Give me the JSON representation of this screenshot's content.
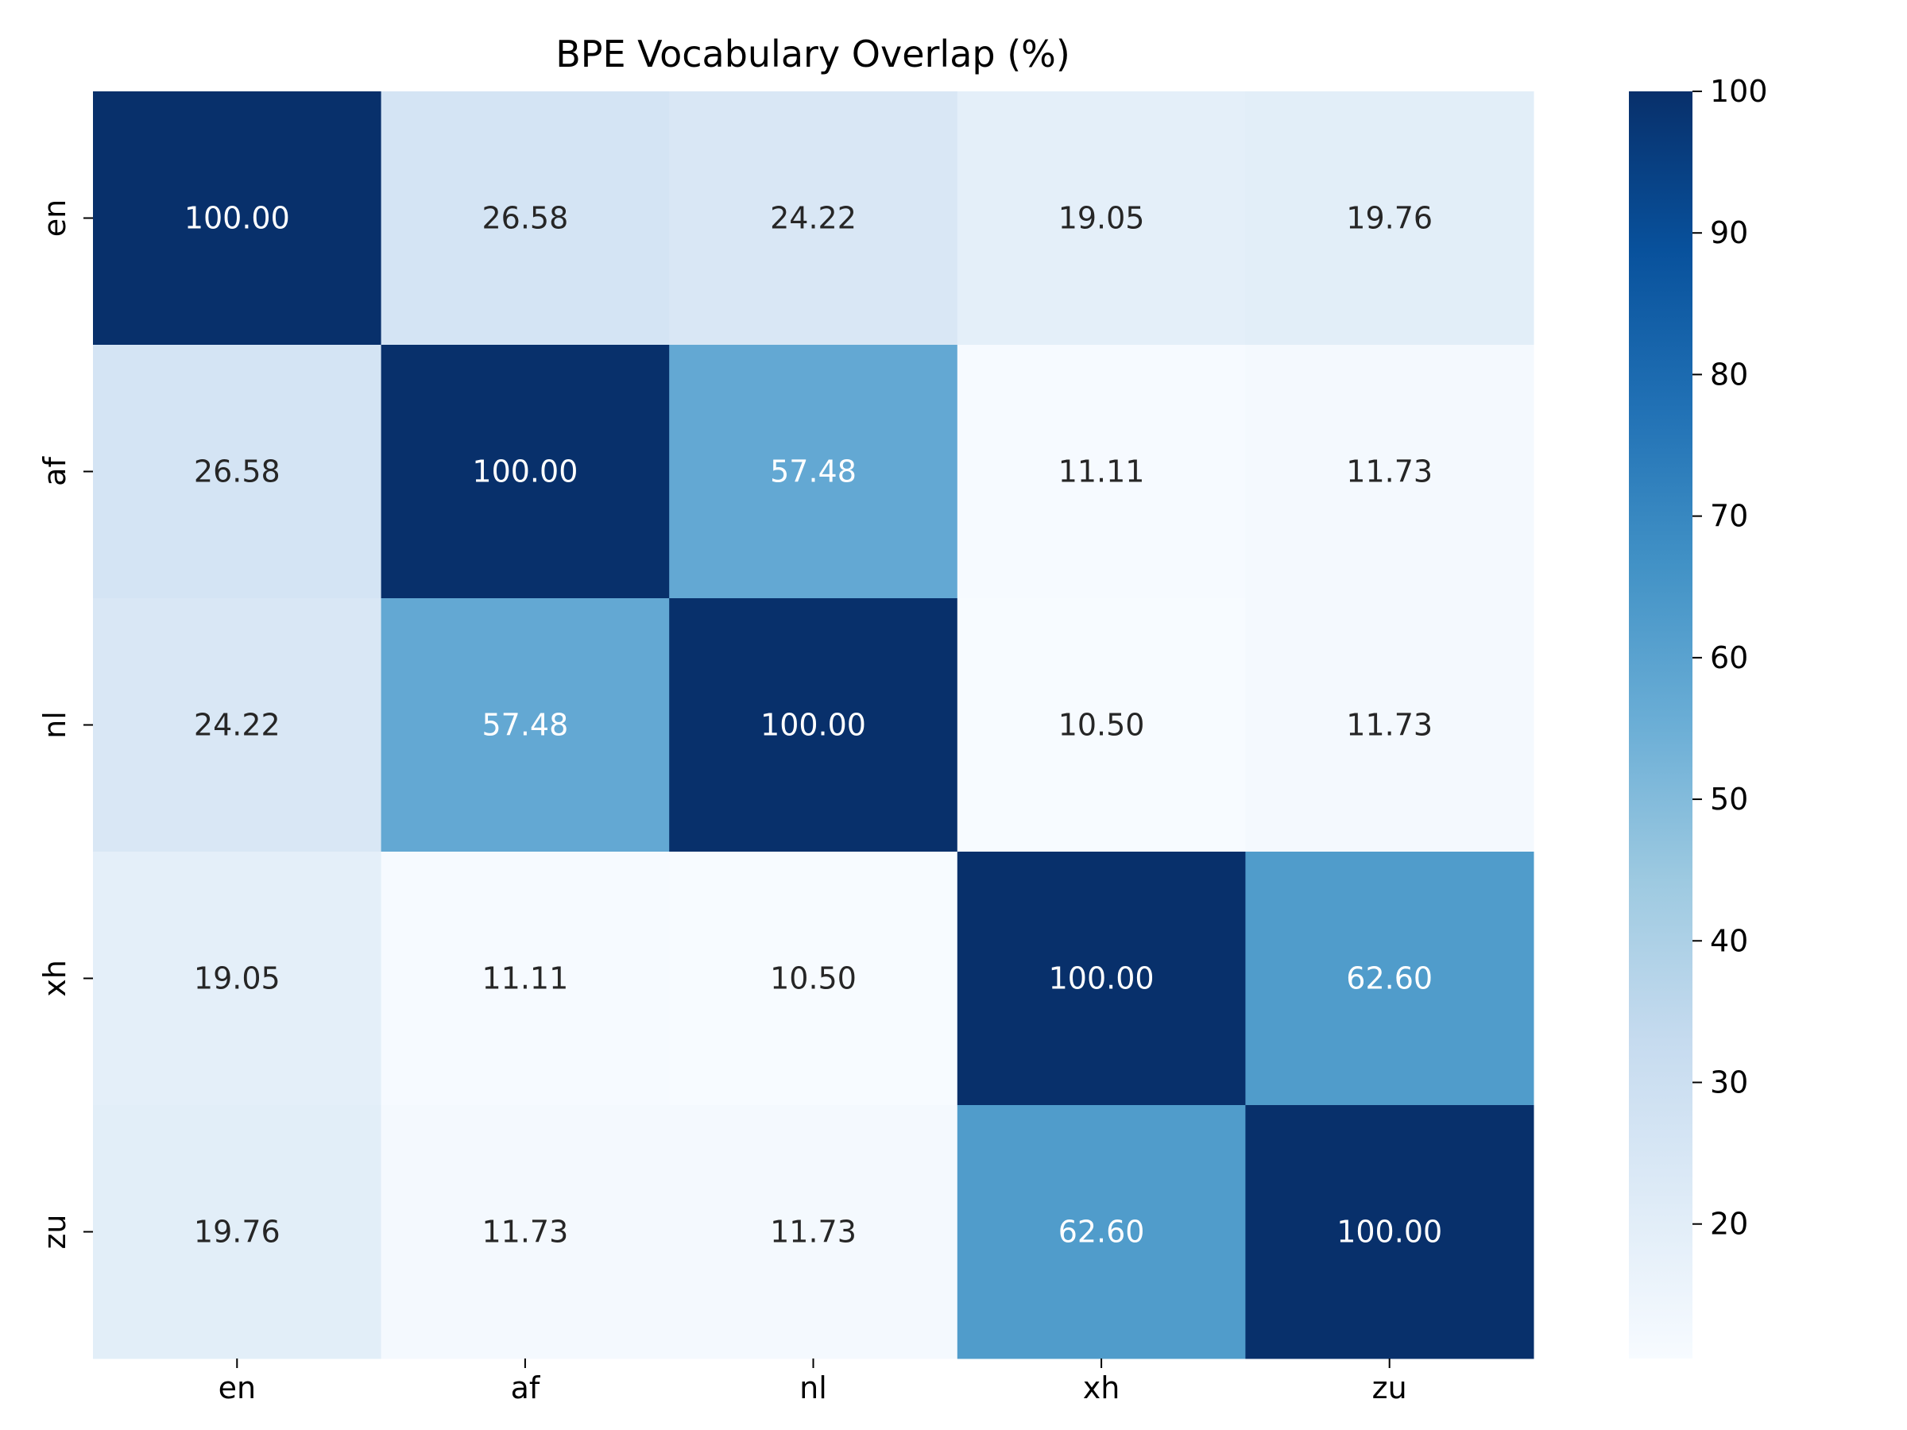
{
  "chart_data": {
    "type": "heatmap",
    "title": "BPE Vocabulary Overlap (%)",
    "xlabel": "",
    "ylabel": "",
    "x_categories": [
      "en",
      "af",
      "nl",
      "xh",
      "zu"
    ],
    "y_categories": [
      "en",
      "af",
      "nl",
      "xh",
      "zu"
    ],
    "values": [
      [
        100.0,
        26.58,
        24.22,
        19.05,
        19.76
      ],
      [
        26.58,
        100.0,
        57.48,
        11.11,
        11.73
      ],
      [
        24.22,
        57.48,
        100.0,
        10.5,
        11.73
      ],
      [
        19.05,
        11.11,
        10.5,
        100.0,
        62.6
      ],
      [
        19.76,
        11.73,
        11.73,
        62.6,
        100.0
      ]
    ],
    "value_format": "2 decimals",
    "colormap": "Blues",
    "color_range": [
      10.5,
      100
    ],
    "colorbar": {
      "ticks": [
        20,
        30,
        40,
        50,
        60,
        70,
        80,
        90,
        100
      ],
      "tick_labels": [
        "20",
        "30",
        "40",
        "50",
        "60",
        "70",
        "80",
        "90",
        "100"
      ]
    },
    "annotation_colors": {
      "light_text": "#ffffff",
      "dark_text": "#262626"
    },
    "grid": false
  }
}
